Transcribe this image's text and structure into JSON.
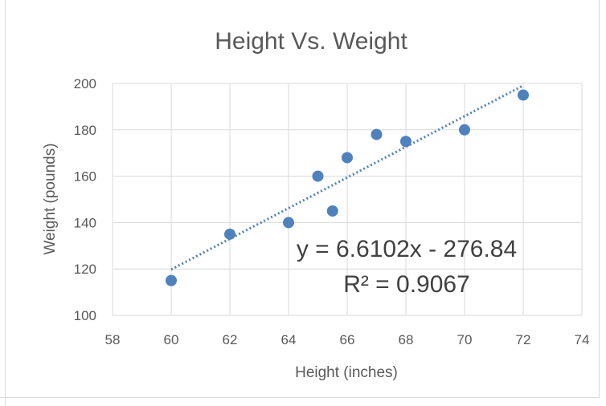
{
  "chart_data": {
    "type": "scatter",
    "title": "Height Vs. Weight",
    "xlabel": "Height (inches)",
    "ylabel": "Weight (pounds)",
    "xlim": [
      58,
      74
    ],
    "ylim": [
      100,
      200
    ],
    "x_ticks": [
      58,
      60,
      62,
      64,
      66,
      68,
      70,
      72,
      74
    ],
    "y_ticks": [
      100,
      120,
      140,
      160,
      180,
      200
    ],
    "grid": true,
    "marker_color": "#4f81bd",
    "trendline_color": "#4f81bd",
    "series": [
      {
        "points": [
          {
            "x": 60,
            "y": 115
          },
          {
            "x": 62,
            "y": 135
          },
          {
            "x": 64,
            "y": 140
          },
          {
            "x": 65,
            "y": 160
          },
          {
            "x": 65.5,
            "y": 145
          },
          {
            "x": 66,
            "y": 168
          },
          {
            "x": 67,
            "y": 178
          },
          {
            "x": 68,
            "y": 175
          },
          {
            "x": 70,
            "y": 180
          },
          {
            "x": 72,
            "y": 195
          }
        ]
      }
    ],
    "trendline": {
      "type": "linear",
      "slope": 6.6102,
      "intercept": -276.84,
      "x_range": [
        60,
        72
      ],
      "style": "dotted",
      "equation_label": "y = 6.6102x - 276.84",
      "r2_label": "R² = 0.9067"
    }
  }
}
